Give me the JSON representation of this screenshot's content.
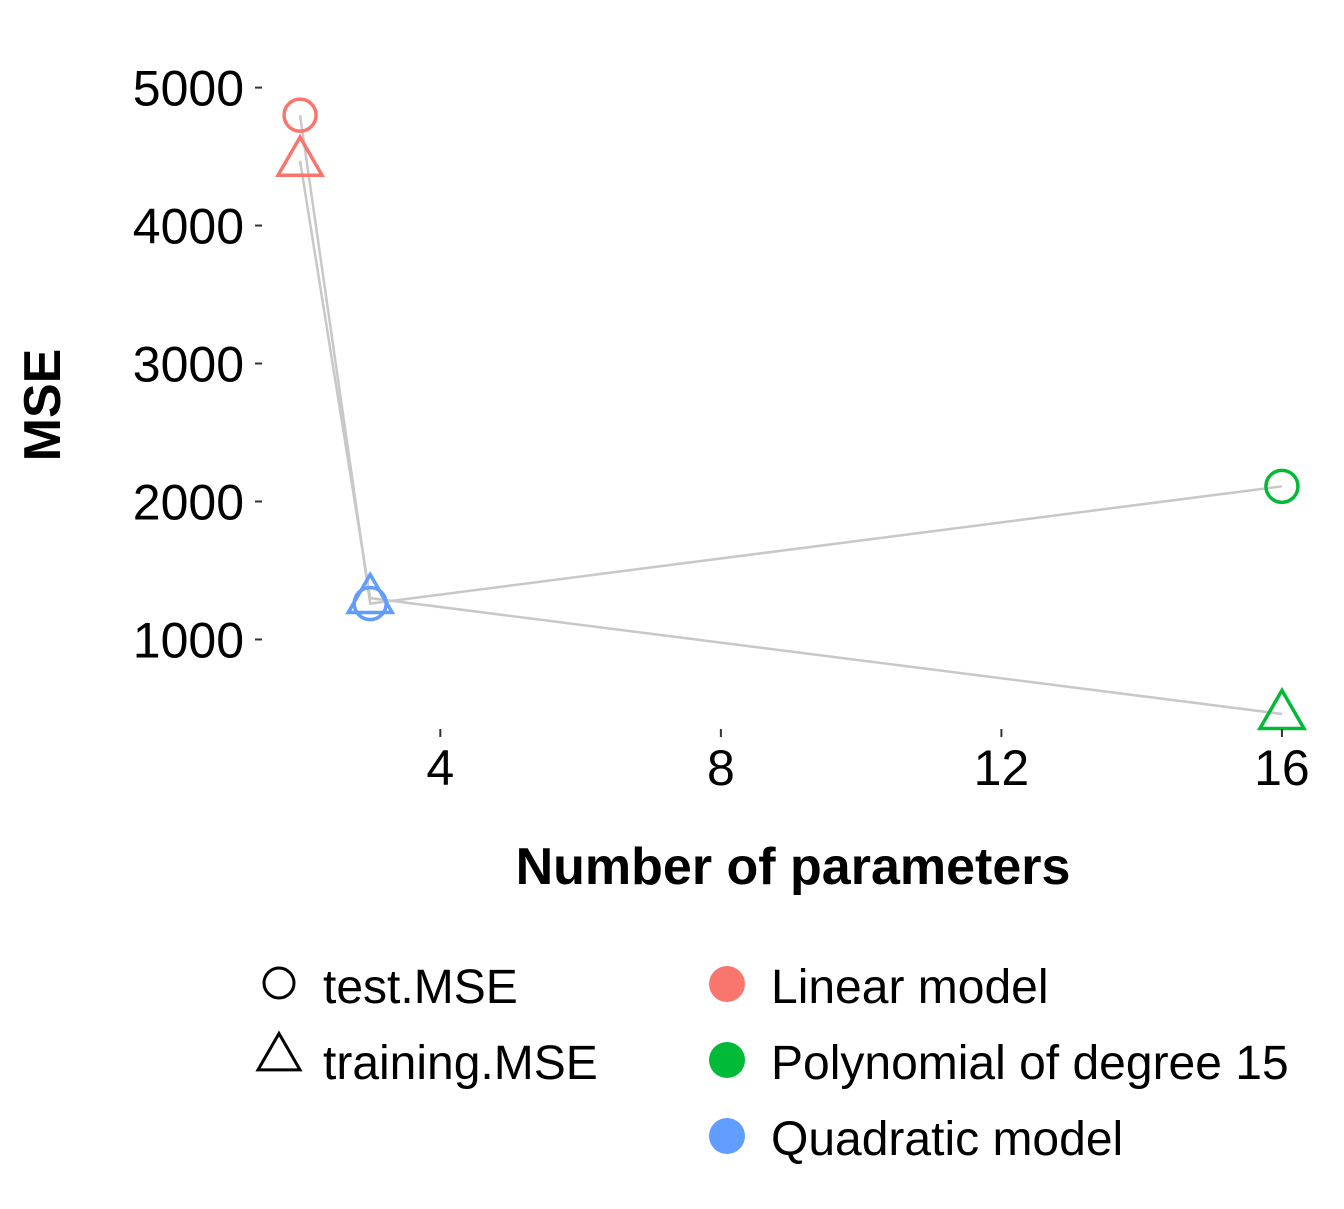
{
  "chart_data": {
    "type": "scatter",
    "xlabel": "Number of parameters",
    "ylabel": "MSE",
    "xlim": [
      1.6,
      16.4
    ],
    "ylim": [
      380,
      5200
    ],
    "x_ticks": [
      4,
      8,
      12,
      16
    ],
    "y_ticks": [
      1000,
      2000,
      3000,
      4000,
      5000
    ],
    "grid": false,
    "legend_position": "bottom",
    "shape_legend": [
      {
        "key": "test",
        "label": "test.MSE",
        "shape": "circle"
      },
      {
        "key": "training",
        "label": "training.MSE",
        "shape": "triangle"
      }
    ],
    "color_legend": [
      {
        "key": "linear",
        "label": "Linear model",
        "color": "#F8766D"
      },
      {
        "key": "poly",
        "label": "Polynomial of degree 15",
        "color": "#00BA38"
      },
      {
        "key": "quad",
        "label": "Quadratic model",
        "color": "#619CFF"
      }
    ],
    "points": [
      {
        "model": "linear",
        "metric": "test",
        "x": 2,
        "y": 4800
      },
      {
        "model": "linear",
        "metric": "training",
        "x": 2,
        "y": 4470
      },
      {
        "model": "quad",
        "metric": "test",
        "x": 3,
        "y": 1260
      },
      {
        "model": "quad",
        "metric": "training",
        "x": 3,
        "y": 1300
      },
      {
        "model": "poly",
        "metric": "test",
        "x": 16,
        "y": 2110
      },
      {
        "model": "poly",
        "metric": "training",
        "x": 16,
        "y": 460
      }
    ],
    "lines": [
      {
        "metric": "test",
        "color": "#C8C8C8",
        "path": [
          [
            2,
            4800
          ],
          [
            3,
            1260
          ],
          [
            16,
            2110
          ]
        ]
      },
      {
        "metric": "training",
        "color": "#C8C8C8",
        "path": [
          [
            2,
            4470
          ],
          [
            3,
            1300
          ],
          [
            16,
            460
          ]
        ]
      }
    ]
  }
}
